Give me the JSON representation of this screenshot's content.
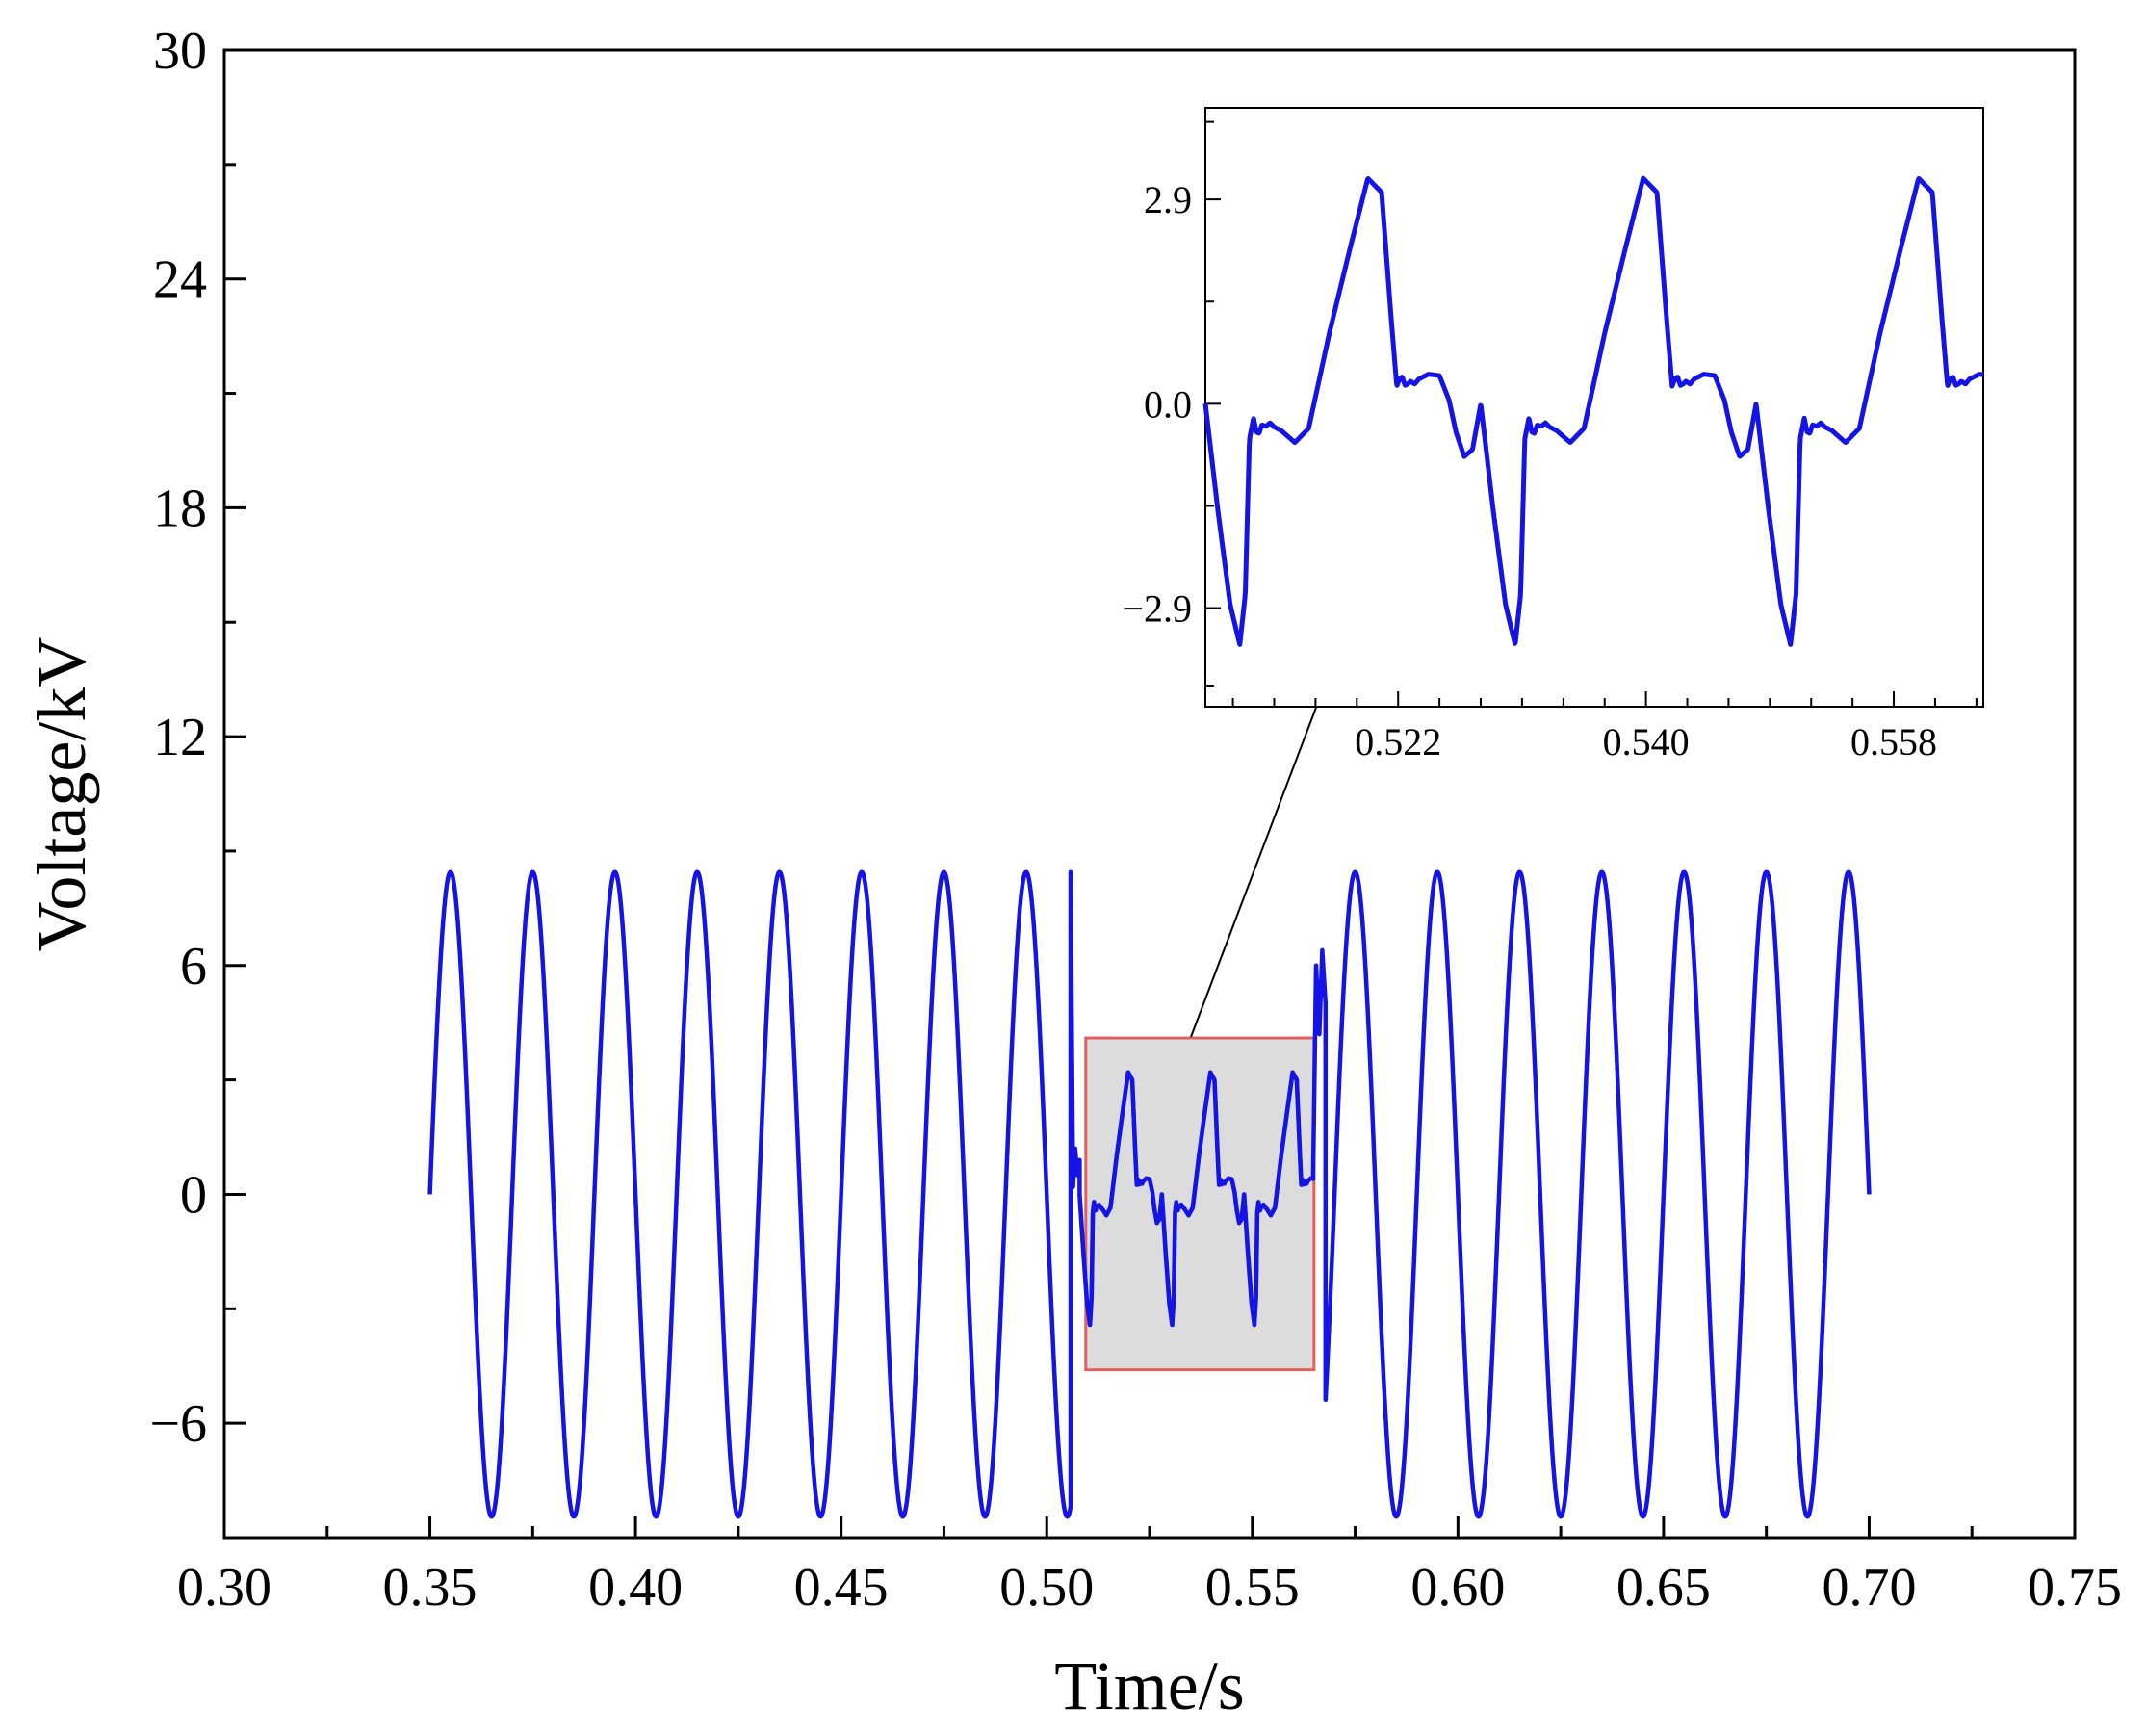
{
  "chart_data": [
    {
      "type": "line",
      "title": "",
      "xlabel": "Time/s",
      "ylabel": "Voltage/kV",
      "xlim": [
        0.3,
        0.75
      ],
      "ylim": [
        -9,
        30
      ],
      "xticks": [
        "0.30",
        "0.35",
        "0.40",
        "0.45",
        "0.50",
        "0.55",
        "0.60",
        "0.65",
        "0.70",
        "0.75"
      ],
      "yticks": [
        "−6",
        "0",
        "6",
        "12",
        "18",
        "24",
        "30"
      ],
      "grid": false,
      "legend": "none",
      "series_color": "#1414e6",
      "highlight": {
        "x_range": [
          0.5095,
          0.565
        ],
        "y_range": [
          -4.6,
          4.1
        ],
        "fill": "#dcdcdc",
        "border": "#e06060"
      },
      "series": [
        {
          "segments": [
            {
              "label": "normal",
              "t_start": 0.35,
              "t_end": 0.5058,
              "frequency_hz": 50,
              "amplitude_kv": 8.45
            },
            {
              "label": "transient",
              "x": [
                0.5058,
                0.5064,
                0.5069,
                0.5075,
                0.508
              ],
              "y": [
                8.45,
                0.2,
                1.2,
                0.5,
                0.9
              ]
            },
            {
              "label": "fault",
              "t_start": 0.508,
              "t_end": 0.5648
            },
            {
              "label": "recovery",
              "x": [
                0.5648,
                0.5655,
                0.5663,
                0.567,
                0.5678
              ],
              "y": [
                0.6,
                6.0,
                4.2,
                6.4,
                5.0
              ]
            },
            {
              "label": "normal",
              "t_start": 0.5678,
              "t_end": 0.7,
              "frequency_hz": 50,
              "amplitude_kv": 8.45
            }
          ]
        }
      ]
    },
    {
      "type": "line",
      "title": "",
      "xlabel": "",
      "ylabel": "",
      "xlim": [
        0.508,
        0.5645
      ],
      "ylim": [
        -4.3,
        4.2
      ],
      "xticks": [
        "0.522",
        "0.540",
        "0.558"
      ],
      "yticks": [
        "−2.9",
        "0.0",
        "2.9"
      ],
      "grid": false,
      "legend": "none",
      "series_color": "#1414e6",
      "fault_waveform": {
        "period_s": 0.02,
        "start_s": 0.508,
        "x": [
          0.0,
          0.0009,
          0.0018,
          0.0025,
          0.0029,
          0.0032,
          0.0035,
          0.0037,
          0.0039,
          0.0041,
          0.0044,
          0.0047,
          0.005,
          0.0055,
          0.0065,
          0.0075,
          0.009,
          0.0105,
          0.0118,
          0.0128,
          0.0135,
          0.0139,
          0.0141,
          0.0143,
          0.0145,
          0.0147,
          0.0149,
          0.0152,
          0.0155,
          0.0162,
          0.017,
          0.0177,
          0.0182,
          0.0188,
          0.0194,
          0.02
        ],
        "y": [
          0.0,
          -1.5,
          -2.85,
          -3.42,
          -2.7,
          -0.5,
          -0.2,
          -0.4,
          -0.42,
          -0.3,
          -0.32,
          -0.27,
          -0.33,
          -0.38,
          -0.55,
          -0.35,
          1.0,
          2.2,
          3.2,
          3.0,
          1.2,
          0.25,
          0.35,
          0.38,
          0.26,
          0.28,
          0.32,
          0.28,
          0.35,
          0.42,
          0.4,
          0.05,
          -0.4,
          -0.75,
          -0.65,
          0.0
        ]
      }
    }
  ]
}
